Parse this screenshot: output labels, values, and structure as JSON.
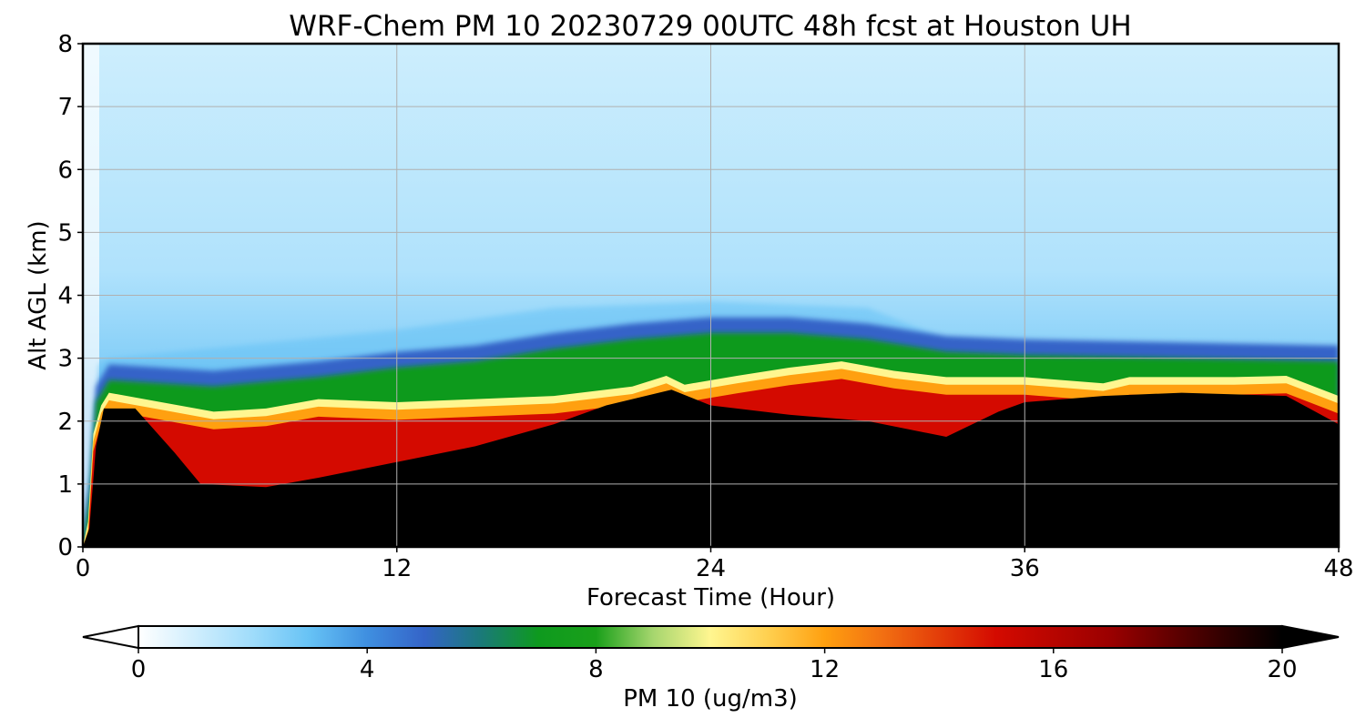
{
  "chart_data": {
    "type": "heatmap",
    "title": "WRF-Chem PM 10  20230729 00UTC 48h fcst at Houston UH",
    "xlabel": "Forecast Time (Hour)",
    "ylabel": "Alt AGL (km)",
    "xlim": [
      0,
      48
    ],
    "ylim": [
      0,
      8
    ],
    "x_ticks": [
      0,
      12,
      24,
      36,
      48
    ],
    "y_ticks": [
      0,
      1,
      2,
      3,
      4,
      5,
      6,
      7,
      8
    ],
    "grid": true,
    "colorbar": {
      "label": "PM 10  (ug/m3)",
      "range": [
        0,
        20
      ],
      "ticks": [
        0,
        4,
        8,
        12,
        16,
        20
      ],
      "extend": "both",
      "orientation": "horizontal",
      "stops": [
        {
          "value": 0,
          "color": "#ffffff"
        },
        {
          "value": 2,
          "color": "#9fdcfb"
        },
        {
          "value": 3,
          "color": "#66c2f5"
        },
        {
          "value": 4,
          "color": "#3f8fe0"
        },
        {
          "value": 5,
          "color": "#3464c8"
        },
        {
          "value": 6,
          "color": "#1a7a78"
        },
        {
          "value": 7,
          "color": "#0e9a1e"
        },
        {
          "value": 8,
          "color": "#1aa01a"
        },
        {
          "value": 9,
          "color": "#a6d66e"
        },
        {
          "value": 10,
          "color": "#fff690"
        },
        {
          "value": 11,
          "color": "#ffd050"
        },
        {
          "value": 12,
          "color": "#ffa010"
        },
        {
          "value": 13,
          "color": "#f27012"
        },
        {
          "value": 15,
          "color": "#d40a00"
        },
        {
          "value": 17,
          "color": "#9a0000"
        },
        {
          "value": 19,
          "color": "#300000"
        },
        {
          "value": 20,
          "color": "#000000"
        }
      ]
    },
    "inversion_top_km": [
      [
        0,
        0
      ],
      [
        0.2,
        0.4
      ],
      [
        0.4,
        1.8
      ],
      [
        0.7,
        2.25
      ],
      [
        1,
        2.45
      ],
      [
        3,
        2.3
      ],
      [
        5,
        2.15
      ],
      [
        7,
        2.2
      ],
      [
        9,
        2.35
      ],
      [
        12,
        2.3
      ],
      [
        15,
        2.35
      ],
      [
        18,
        2.4
      ],
      [
        21,
        2.55
      ],
      [
        22.3,
        2.72
      ],
      [
        23,
        2.58
      ],
      [
        25,
        2.72
      ],
      [
        27,
        2.85
      ],
      [
        29,
        2.95
      ],
      [
        31,
        2.8
      ],
      [
        33,
        2.7
      ],
      [
        36,
        2.7
      ],
      [
        39,
        2.6
      ],
      [
        40,
        2.7
      ],
      [
        44,
        2.7
      ],
      [
        46,
        2.72
      ],
      [
        48,
        2.4
      ]
    ],
    "boundary_layer_top_km": [
      [
        0,
        0
      ],
      [
        0.25,
        0.3
      ],
      [
        0.5,
        1.6
      ],
      [
        0.8,
        2.2
      ],
      [
        2,
        2.2
      ],
      [
        3.5,
        1.5
      ],
      [
        4.5,
        1.0
      ],
      [
        7,
        0.95
      ],
      [
        9,
        1.1
      ],
      [
        12,
        1.35
      ],
      [
        15,
        1.6
      ],
      [
        18,
        1.95
      ],
      [
        20,
        2.25
      ],
      [
        22.5,
        2.5
      ],
      [
        24,
        2.25
      ],
      [
        27,
        2.1
      ],
      [
        30,
        2.0
      ],
      [
        33,
        1.75
      ],
      [
        35,
        2.15
      ],
      [
        36,
        2.3
      ],
      [
        39,
        2.4
      ],
      [
        42,
        2.45
      ],
      [
        46,
        2.4
      ],
      [
        48,
        1.95
      ]
    ],
    "mixing_top_km": [
      [
        0,
        0
      ],
      [
        0.3,
        0.9
      ],
      [
        0.5,
        2.3
      ],
      [
        1,
        2.65
      ],
      [
        5,
        2.55
      ],
      [
        9,
        2.7
      ],
      [
        12,
        2.85
      ],
      [
        15,
        2.95
      ],
      [
        18,
        3.15
      ],
      [
        21,
        3.3
      ],
      [
        24,
        3.4
      ],
      [
        27,
        3.4
      ],
      [
        30,
        3.3
      ],
      [
        33,
        3.1
      ],
      [
        36,
        3.05
      ],
      [
        48,
        2.95
      ]
    ],
    "aerosol_haze_top_km": [
      [
        0,
        0
      ],
      [
        0.3,
        1.5
      ],
      [
        0.6,
        2.9
      ],
      [
        1,
        3.0
      ],
      [
        6,
        3.2
      ],
      [
        12,
        3.45
      ],
      [
        18,
        3.8
      ],
      [
        24,
        3.9
      ],
      [
        30,
        3.8
      ],
      [
        33,
        3.3
      ],
      [
        36,
        3.2
      ],
      [
        42,
        3.2
      ],
      [
        48,
        3.1
      ]
    ]
  }
}
